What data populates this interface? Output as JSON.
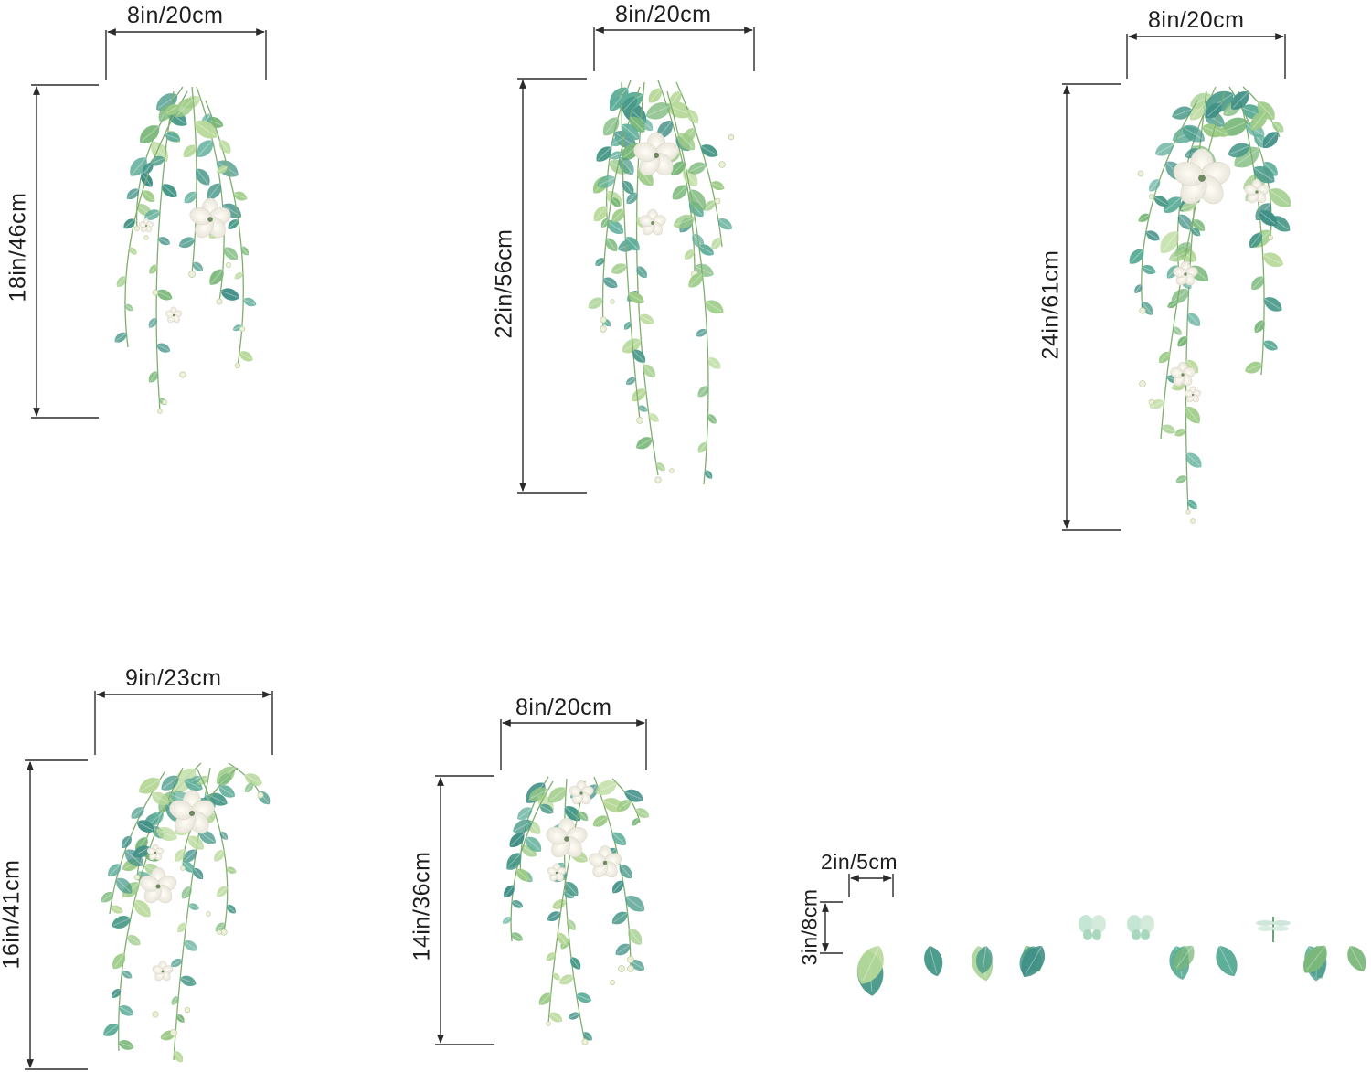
{
  "colors": {
    "line": "#2a2a2a",
    "leaf_dark": "#4a9a8a",
    "leaf_mid": "#7ab87a",
    "leaf_light": "#b8d99a",
    "flower": "#f7f5ef"
  },
  "decals": [
    {
      "id": "decal-1",
      "width": "8in/20cm",
      "height": "18in/46cm"
    },
    {
      "id": "decal-2",
      "width": "8in/20cm",
      "height": "22in/56cm"
    },
    {
      "id": "decal-3",
      "width": "8in/20cm",
      "height": "24in/61cm"
    },
    {
      "id": "decal-4",
      "width": "9in/23cm",
      "height": "16in/41cm"
    },
    {
      "id": "decal-5",
      "width": "8in/20cm",
      "height": "14in/36cm"
    },
    {
      "id": "decal-6",
      "width": "2in/5cm",
      "height": "3in/8cm"
    }
  ]
}
